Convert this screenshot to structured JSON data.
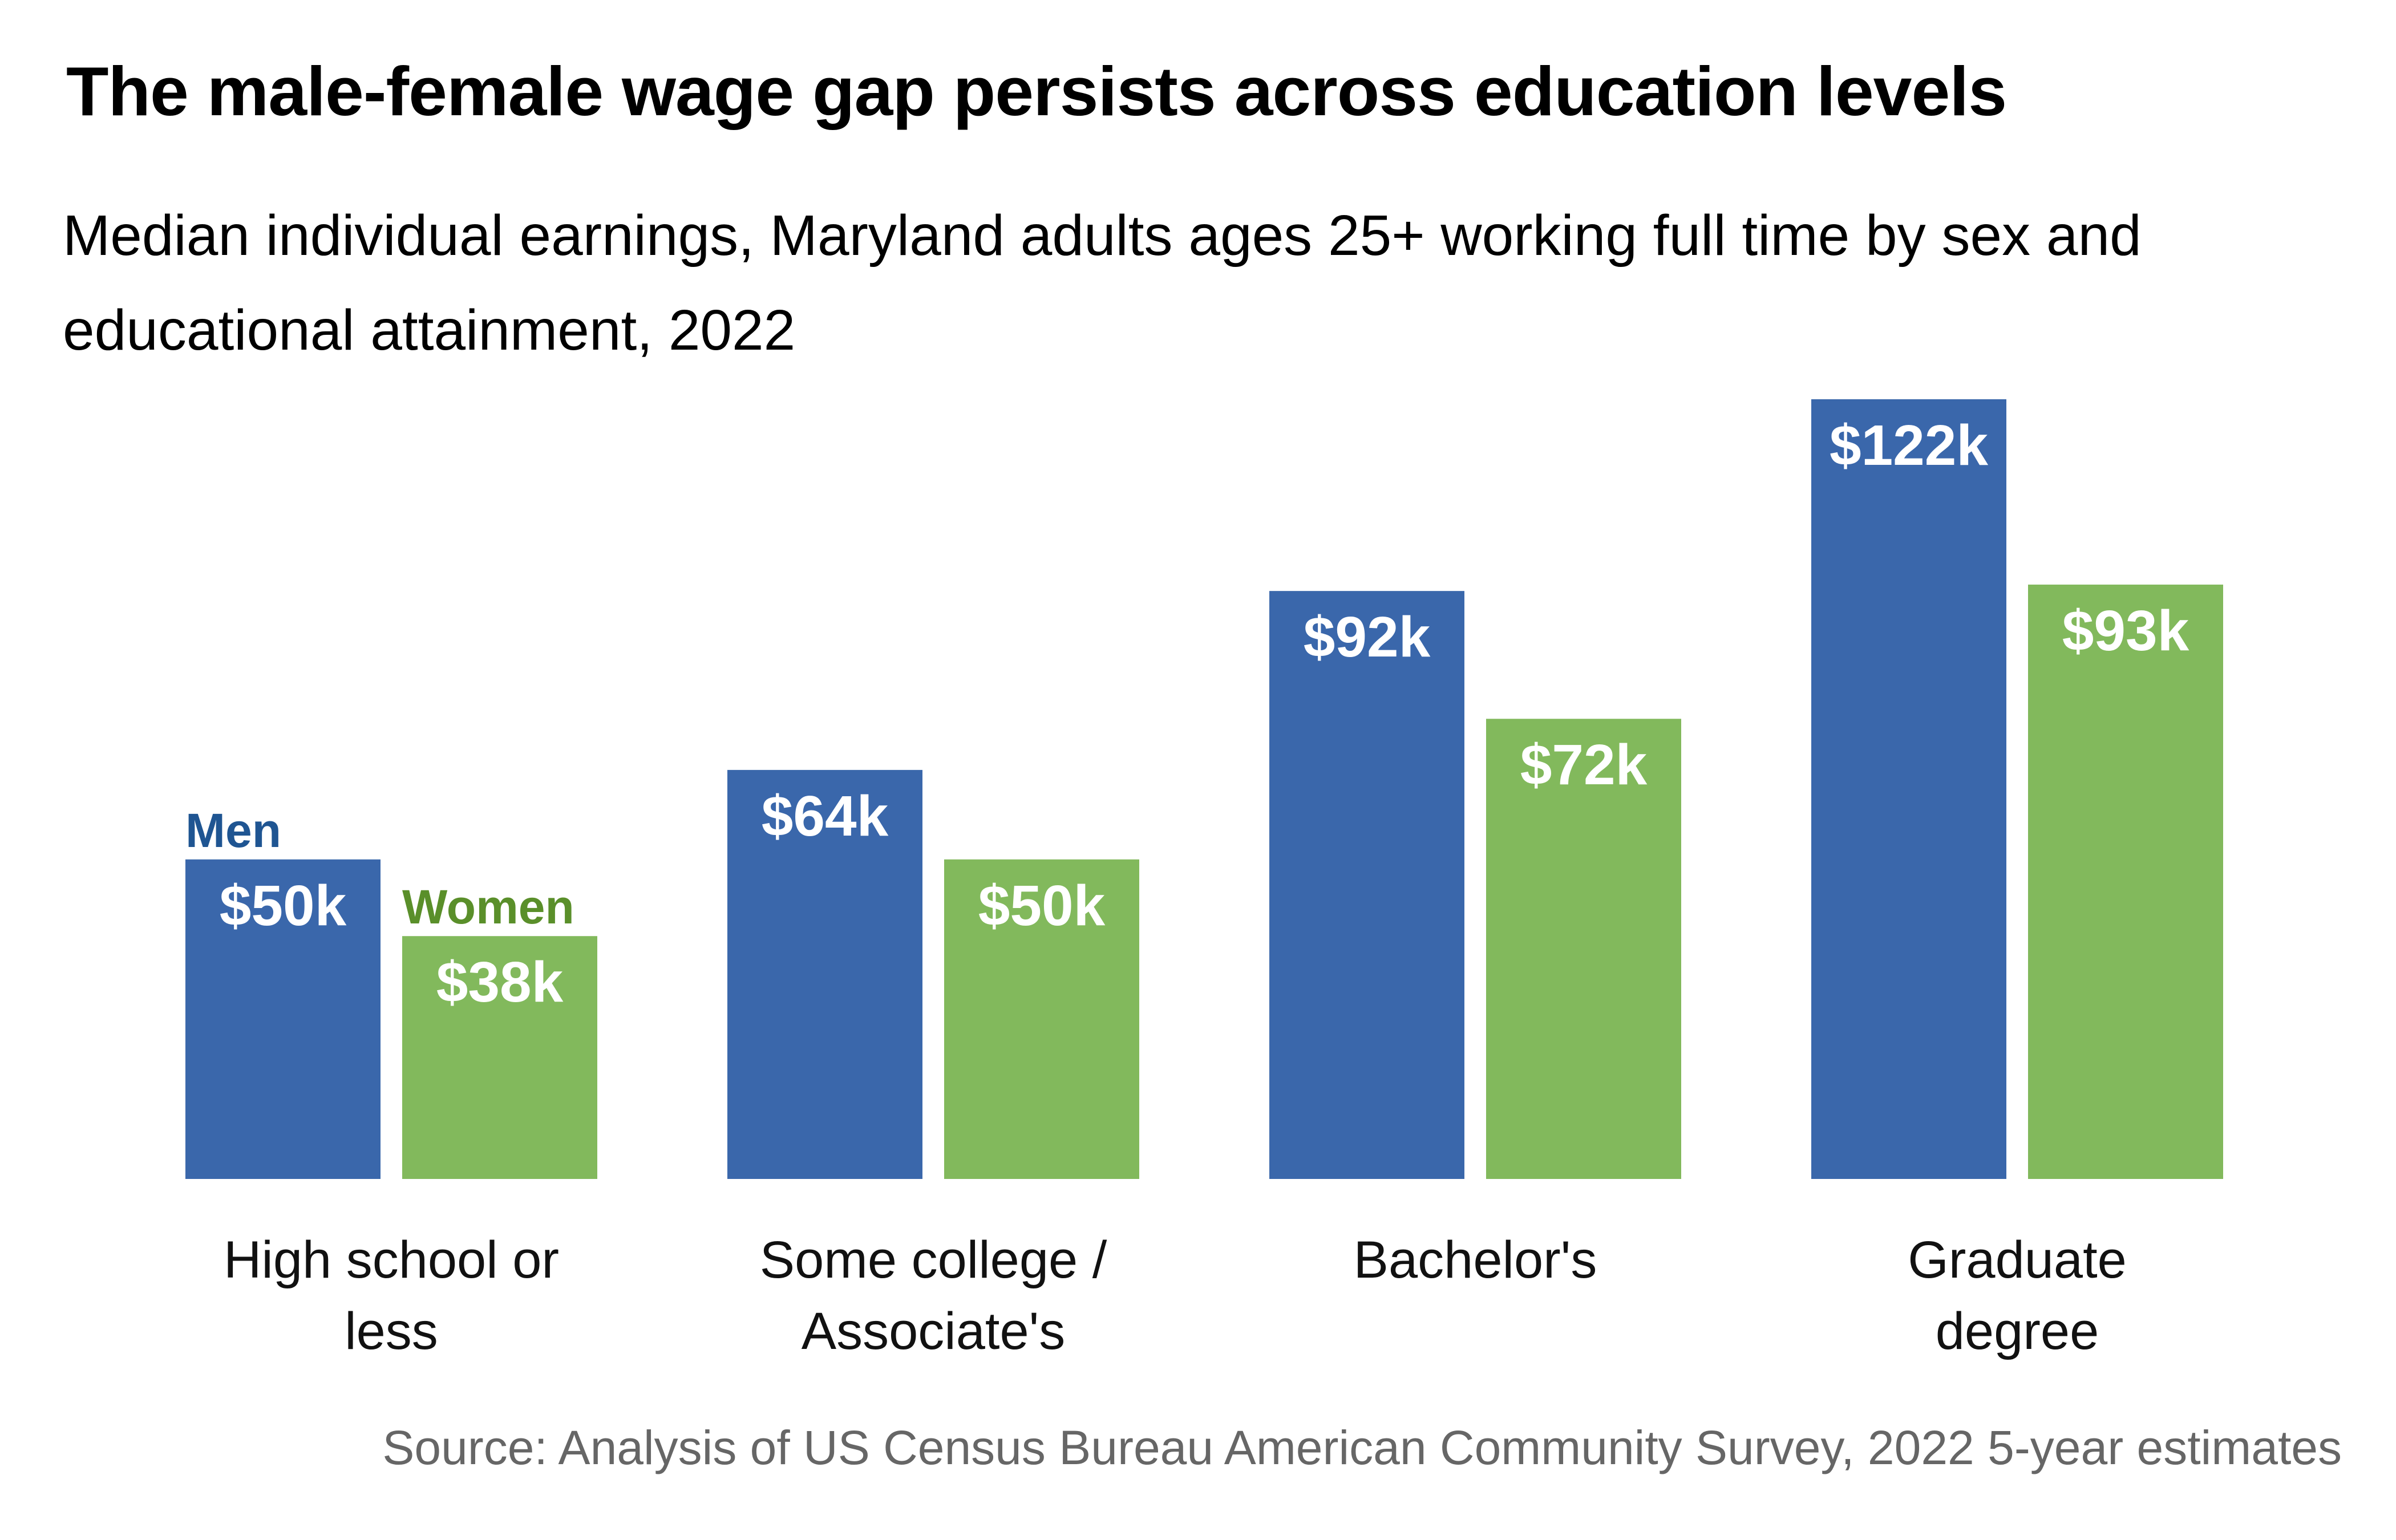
{
  "chart_data": {
    "type": "bar",
    "title": "The male-female wage gap persists across education levels",
    "subtitle": "Median individual earnings, Maryland adults ages 25+ working full time by sex and educational attainment, 2022",
    "source": "Source: Analysis of US Census Bureau American Community Survey, 2022 5-year estimates",
    "categories": [
      [
        "High school or",
        "less"
      ],
      [
        "Some college /",
        "Associate's"
      ],
      [
        "Bachelor's"
      ],
      [
        "Graduate",
        "degree"
      ]
    ],
    "series": [
      {
        "name": "Men",
        "values": [
          50,
          64,
          92,
          122
        ],
        "labels": [
          "$50k",
          "$64k",
          "$92k",
          "$122k"
        ],
        "color": "#3a67ab",
        "legend_color": "#1f5592"
      },
      {
        "name": "Women",
        "values": [
          38,
          50,
          72,
          93
        ],
        "labels": [
          "$38k",
          "$50k",
          "$72k",
          "$93k"
        ],
        "color": "#82b95c",
        "legend_color": "#5a8f2a"
      }
    ],
    "unit": "thousands of dollars",
    "ylim": [
      0,
      122
    ],
    "legend": "inline-above-first-group",
    "grid": false,
    "xlabel": "",
    "ylabel": ""
  }
}
